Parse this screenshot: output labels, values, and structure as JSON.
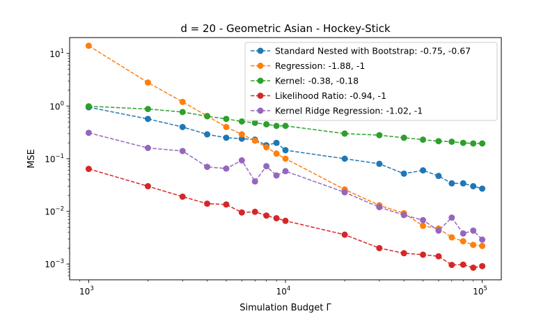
{
  "chart_data": {
    "type": "line",
    "title": "d = 20 - Geometric Asian - Hockey-Stick",
    "xlabel": "Simulation Budget Γ",
    "ylabel": "MSE",
    "xscale": "log",
    "yscale": "log",
    "xlim": [
      800,
      125000
    ],
    "ylim": [
      0.0005,
      20
    ],
    "x_ticks": [
      {
        "value": 1000,
        "base": "10",
        "exp": "3"
      },
      {
        "value": 10000,
        "base": "10",
        "exp": "4"
      },
      {
        "value": 100000,
        "base": "10",
        "exp": "5"
      }
    ],
    "y_ticks": [
      {
        "value": 0.001,
        "base": "10",
        "exp": "−3"
      },
      {
        "value": 0.01,
        "base": "10",
        "exp": "−2"
      },
      {
        "value": 0.1,
        "base": "10",
        "exp": "−1"
      },
      {
        "value": 1,
        "base": "10",
        "exp": "0"
      },
      {
        "value": 10,
        "base": "10",
        "exp": "1"
      }
    ],
    "grid": false,
    "legend_position": "top-right",
    "x": [
      1000,
      2000,
      3000,
      4000,
      5000,
      6000,
      7000,
      8000,
      9000,
      10000,
      20000,
      30000,
      40000,
      50000,
      60000,
      70000,
      80000,
      90000,
      100000
    ],
    "series": [
      {
        "name": "Standard Nested with Bootstrap: -0.75, -0.67",
        "color": "#1f77b4",
        "values": [
          0.95,
          0.57,
          0.4,
          0.29,
          0.25,
          0.24,
          0.23,
          0.18,
          0.2,
          0.145,
          0.1,
          0.08,
          0.052,
          0.06,
          0.047,
          0.034,
          0.034,
          0.03,
          0.027
        ]
      },
      {
        "name": "Regression: -1.88, -1",
        "color": "#ff7f0e",
        "values": [
          14,
          2.8,
          1.2,
          0.65,
          0.4,
          0.29,
          0.22,
          0.165,
          0.125,
          0.1,
          0.026,
          0.013,
          0.0092,
          0.0053,
          0.0047,
          0.0032,
          0.0027,
          0.0023,
          0.0022
        ]
      },
      {
        "name": "Kernel: -0.38, -0.18",
        "color": "#2ca02c",
        "values": [
          0.99,
          0.88,
          0.77,
          0.64,
          0.57,
          0.51,
          0.48,
          0.45,
          0.42,
          0.42,
          0.3,
          0.28,
          0.25,
          0.23,
          0.215,
          0.21,
          0.2,
          0.195,
          0.195
        ]
      },
      {
        "name": "Likelihood Ratio: -0.94, -1",
        "color": "#d62728",
        "values": [
          0.064,
          0.03,
          0.019,
          0.014,
          0.0135,
          0.0095,
          0.0098,
          0.0083,
          0.0074,
          0.0066,
          0.0036,
          0.002,
          0.0016,
          0.0015,
          0.0014,
          0.00096,
          0.00097,
          0.00085,
          0.00091
        ]
      },
      {
        "name": "Kernel Ridge Regression: -1.02, -1",
        "color": "#9467bd",
        "values": [
          0.31,
          0.16,
          0.14,
          0.07,
          0.065,
          0.093,
          0.037,
          0.072,
          0.048,
          0.058,
          0.023,
          0.012,
          0.0085,
          0.0068,
          0.0043,
          0.0076,
          0.0038,
          0.0043,
          0.0029
        ]
      }
    ]
  }
}
